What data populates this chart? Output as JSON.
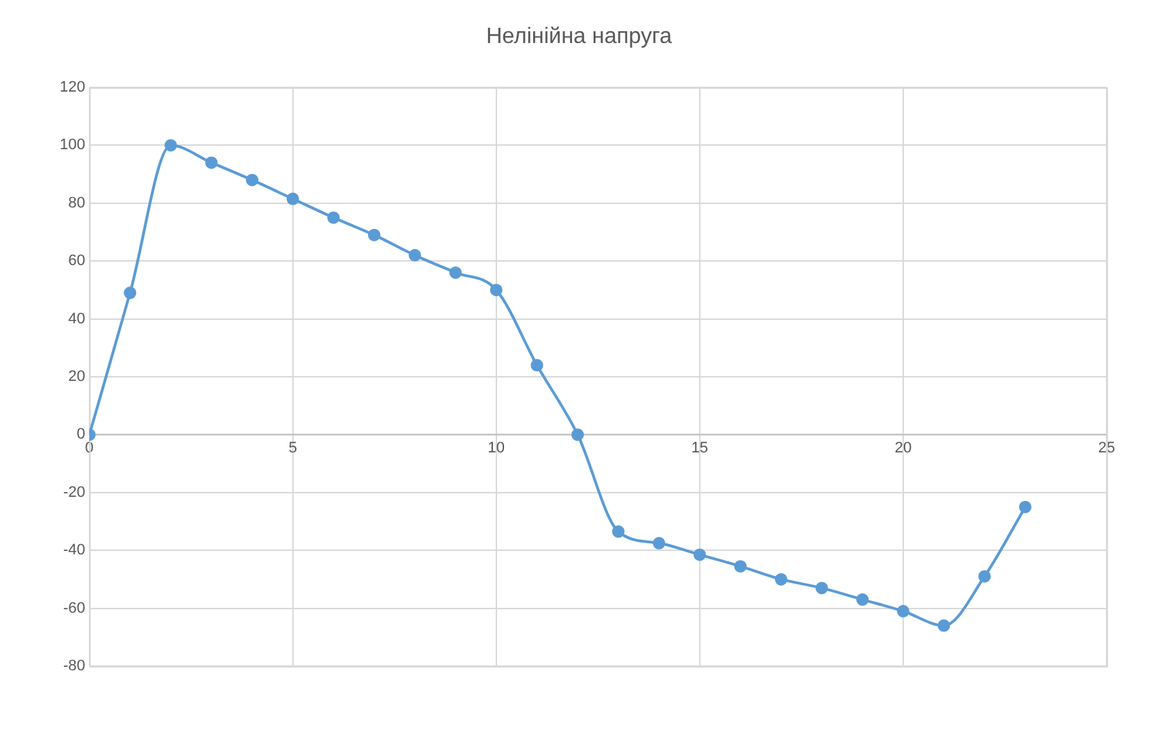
{
  "chart_data": {
    "type": "line",
    "title": "Нелінійна напруга",
    "x": [
      0,
      1,
      2,
      3,
      4,
      5,
      6,
      7,
      8,
      9,
      10,
      11,
      12,
      13,
      14,
      15,
      16,
      17,
      18,
      19,
      20,
      21,
      22,
      23
    ],
    "series": [
      {
        "color": "#5b9bd5",
        "values": [
          0,
          49,
          100,
          94,
          88,
          81.5,
          75,
          69,
          62,
          56,
          50,
          24,
          0,
          -33.5,
          -37.5,
          -41.5,
          -45.5,
          -50,
          -53,
          -57,
          -61,
          -66,
          -49,
          -25
        ]
      }
    ],
    "xlim": [
      0,
      25
    ],
    "xticks": [
      0,
      5,
      10,
      15,
      20,
      25
    ],
    "ylim": [
      -80,
      120
    ],
    "yticks": [
      -80,
      -60,
      -40,
      -20,
      0,
      20,
      40,
      60,
      80,
      100,
      120
    ],
    "grid": true,
    "legend": false,
    "marker": "circle",
    "line_style": "solid"
  }
}
